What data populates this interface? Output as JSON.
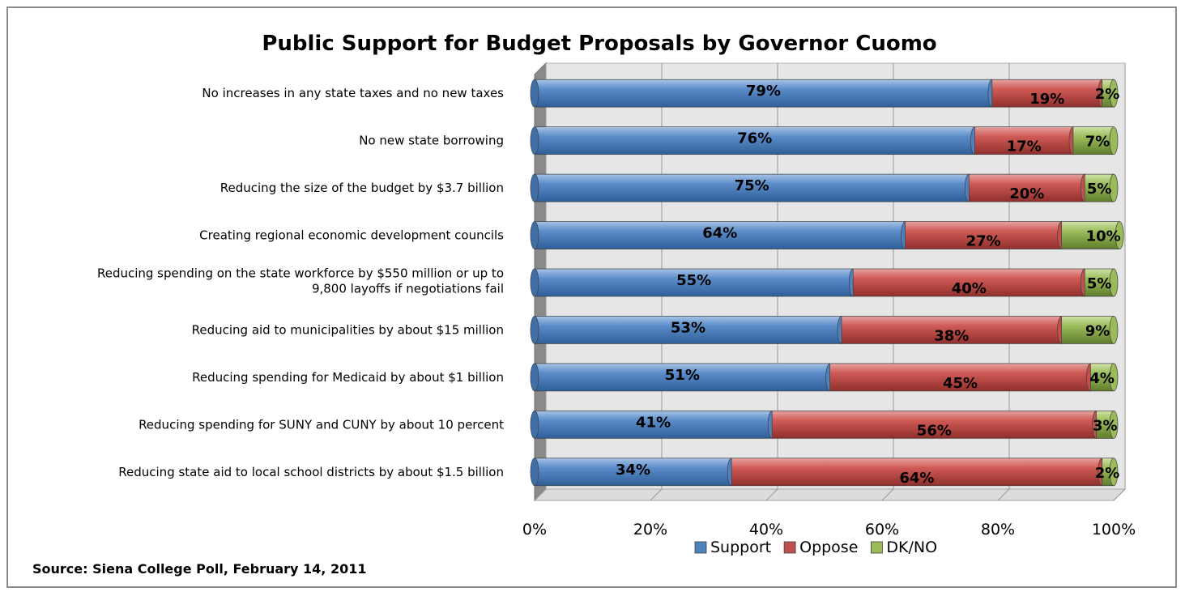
{
  "chart_data": {
    "type": "bar",
    "orientation": "horizontal",
    "stacked": true,
    "percent_stacked": true,
    "title": "Public Support for Budget Proposals by Governor Cuomo",
    "categories": [
      [
        "No increases in any state taxes and no new taxes"
      ],
      [
        "No new state borrowing"
      ],
      [
        "Reducing the size of the budget by $3.7 billion"
      ],
      [
        "Creating regional economic development councils"
      ],
      [
        "Reducing spending on the state workforce by $550 million or up to",
        "9,800 layoffs if negotiations fail"
      ],
      [
        "Reducing aid to municipalities by about $15 million"
      ],
      [
        "Reducing spending for Medicaid by about $1 billion"
      ],
      [
        "Reducing spending for SUNY and CUNY by about 10 percent"
      ],
      [
        "Reducing state aid to local school districts by about $1.5 billion"
      ]
    ],
    "series": [
      {
        "name": "Support",
        "color": "#4f81bd",
        "values": [
          79,
          76,
          75,
          64,
          55,
          53,
          51,
          41,
          34
        ],
        "labels": [
          "79%",
          "76%",
          "75%",
          "64%",
          "55%",
          "53%",
          "51%",
          "41%",
          "34%"
        ]
      },
      {
        "name": "Oppose",
        "color": "#c0504d",
        "values": [
          19,
          17,
          20,
          27,
          40,
          38,
          45,
          56,
          64
        ],
        "labels": [
          "19%",
          "17%",
          "20%",
          "27%",
          "40%",
          "38%",
          "45%",
          "56%",
          "64%"
        ]
      },
      {
        "name": "DK/NO",
        "color": "#9bbb59",
        "values": [
          2,
          7,
          5,
          10,
          5,
          9,
          4,
          3,
          2
        ],
        "labels": [
          "2%",
          "7%",
          "5%",
          "10%",
          "5%",
          "9%",
          "4%",
          "3%",
          "2%"
        ]
      }
    ],
    "xlim": [
      0,
      100
    ],
    "x_ticks": [
      "0%",
      "20%",
      "40%",
      "60%",
      "80%",
      "100%"
    ],
    "grid": true,
    "legend_position": "bottom",
    "three_d": true
  },
  "source": "Source: Siena College Poll,  February 14, 2011"
}
